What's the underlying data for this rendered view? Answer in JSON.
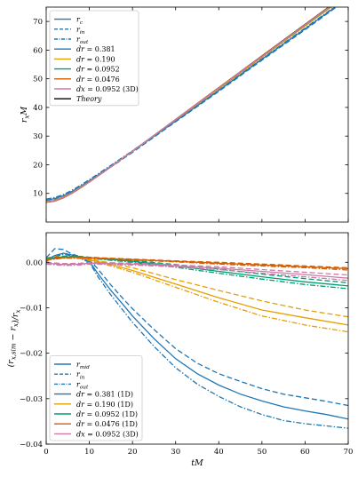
{
  "chart_data": [
    {
      "type": "line",
      "title": "",
      "ylabel": "r_x M",
      "xlabel": "",
      "xlim": [
        0,
        70
      ],
      "ylim": [
        0,
        75
      ],
      "xticks": [
        0,
        10,
        20,
        30,
        40,
        50,
        60,
        70
      ],
      "yticks": [
        10,
        20,
        30,
        40,
        50,
        60,
        70
      ],
      "yticklabels": [
        "10",
        "20",
        "30",
        "40",
        "50",
        "60",
        "70"
      ],
      "grid": false,
      "legend_position": "top-left",
      "legend": [
        {
          "label": "r_c",
          "color": "#1f77b4",
          "dash": "solid"
        },
        {
          "label": "r_in",
          "color": "#1f77b4",
          "dash": "dashed"
        },
        {
          "label": "r_out",
          "color": "#1f77b4",
          "dash": "dashdot"
        },
        {
          "label": "dr = 0.381",
          "color": "#1f77b4",
          "dash": "solid"
        },
        {
          "label": "dr = 0.190",
          "color": "#e69f00",
          "dash": "solid"
        },
        {
          "label": "dr = 0.0952",
          "color": "#009e73",
          "dash": "solid"
        },
        {
          "label": "dr = 0.0476",
          "color": "#d55e00",
          "dash": "solid"
        },
        {
          "label": "dx = 0.0952 (3D)",
          "color": "#cc79a7",
          "dash": "solid"
        },
        {
          "label": "Theory",
          "color": "#000000",
          "dash": "solid"
        }
      ],
      "series": [
        {
          "name": "Theory",
          "color": "#000000",
          "dash": "solid",
          "x": [
            0,
            2,
            4,
            6,
            8,
            10,
            15,
            20,
            30,
            40,
            50,
            60,
            70
          ],
          "y": [
            6.9,
            7.3,
            8.5,
            10.1,
            12.0,
            14.0,
            19.3,
            24.7,
            35.8,
            46.9,
            58.0,
            69.0,
            80.0
          ]
        },
        {
          "name": "dr = 0.381 (r_c)",
          "color": "#1f77b4",
          "dash": "solid",
          "x": [
            0,
            2,
            4,
            6,
            8,
            10,
            15,
            20,
            30,
            40,
            50,
            60,
            70
          ],
          "y": [
            7.6,
            8.2,
            9.2,
            10.7,
            12.5,
            14.4,
            19.5,
            24.6,
            35.2,
            45.9,
            56.8,
            67.4,
            78.3
          ]
        },
        {
          "name": "dr = 0.381 (r_in)",
          "color": "#1f77b4",
          "dash": "dashed",
          "x": [
            0,
            2,
            4,
            6,
            8,
            10,
            15,
            20,
            30,
            40,
            50,
            60,
            70
          ],
          "y": [
            7.2,
            7.8,
            8.8,
            10.3,
            12.1,
            14.0,
            19.2,
            24.3,
            35.0,
            45.6,
            56.5,
            67.1,
            78.0
          ]
        },
        {
          "name": "dr = 0.381 (r_out)",
          "color": "#1f77b4",
          "dash": "dashdot",
          "x": [
            0,
            2,
            4,
            6,
            8,
            10,
            15,
            20,
            30,
            40,
            50,
            60,
            70
          ],
          "y": [
            8.0,
            8.6,
            9.6,
            11.1,
            12.9,
            14.8,
            19.8,
            24.9,
            35.4,
            46.1,
            57.0,
            67.7,
            78.5
          ]
        },
        {
          "name": "dr = 0.190",
          "color": "#e69f00",
          "dash": "solid",
          "x": [
            0,
            2,
            4,
            6,
            8,
            10,
            15,
            20,
            30,
            40,
            50,
            60,
            70
          ],
          "y": [
            7.2,
            7.6,
            8.8,
            10.3,
            12.2,
            14.1,
            19.4,
            24.7,
            35.6,
            46.5,
            57.5,
            68.4,
            79.3
          ]
        },
        {
          "name": "dr = 0.0952",
          "color": "#009e73",
          "dash": "solid",
          "x": [
            0,
            2,
            4,
            6,
            8,
            10,
            15,
            20,
            30,
            40,
            50,
            60,
            70
          ],
          "y": [
            7.0,
            7.4,
            8.6,
            10.2,
            12.1,
            14.0,
            19.3,
            24.7,
            35.7,
            46.8,
            57.8,
            68.7,
            79.7
          ]
        },
        {
          "name": "dr = 0.0476",
          "color": "#d55e00",
          "dash": "solid",
          "x": [
            0,
            2,
            4,
            6,
            8,
            10,
            15,
            20,
            30,
            40,
            50,
            60,
            70
          ],
          "y": [
            6.9,
            7.3,
            8.5,
            10.1,
            12.0,
            14.0,
            19.3,
            24.7,
            35.8,
            46.9,
            57.9,
            68.9,
            79.9
          ]
        },
        {
          "name": "dx = 0.0952 (3D)",
          "color": "#cc79a7",
          "dash": "solid",
          "x": [
            0,
            2,
            4,
            6,
            8,
            10,
            15,
            20,
            30,
            40,
            50,
            60,
            70
          ],
          "y": [
            7.0,
            7.4,
            8.6,
            10.2,
            12.1,
            14.0,
            19.3,
            24.7,
            35.7,
            46.8,
            57.8,
            68.8,
            79.8
          ]
        }
      ]
    },
    {
      "type": "line",
      "title": "",
      "ylabel": "(r_x,sim − r_x)/r_x",
      "xlabel": "tM",
      "xlim": [
        0,
        70
      ],
      "ylim": [
        -0.04,
        0.0065
      ],
      "xticks": [
        0,
        10,
        20,
        30,
        40,
        50,
        60,
        70
      ],
      "xticklabels": [
        "0",
        "10",
        "20",
        "30",
        "40",
        "50",
        "60",
        "70"
      ],
      "yticks": [
        0.0,
        -0.01,
        -0.02,
        -0.03,
        -0.04
      ],
      "yticklabels": [
        "0.00",
        "−0.01",
        "−0.02",
        "−0.03",
        "−0.04"
      ],
      "grid": false,
      "legend_position": "bottom-left",
      "legend": [
        {
          "label": "r_mid",
          "color": "#1f77b4",
          "dash": "solid"
        },
        {
          "label": "r_in",
          "color": "#1f77b4",
          "dash": "dashed"
        },
        {
          "label": "r_out",
          "color": "#1f77b4",
          "dash": "dashdot"
        },
        {
          "label": "dr = 0.381 (1D)",
          "color": "#1f77b4",
          "dash": "solid"
        },
        {
          "label": "dr = 0.190 (1D)",
          "color": "#e69f00",
          "dash": "solid"
        },
        {
          "label": "dr = 0.0952 (1D)",
          "color": "#009e73",
          "dash": "solid"
        },
        {
          "label": "dr = 0.0476 (1D)",
          "color": "#d55e00",
          "dash": "solid"
        },
        {
          "label": "dx = 0.0952 (3D)",
          "color": "#cc79a7",
          "dash": "solid"
        }
      ],
      "series": [
        {
          "name": "dr = 0.381 (1D) r_mid",
          "color": "#1f77b4",
          "dash": "solid",
          "x": [
            0,
            2,
            4,
            6,
            8,
            10,
            12,
            15,
            18,
            20,
            25,
            30,
            35,
            40,
            45,
            50,
            55,
            60,
            65,
            70
          ],
          "y": [
            0.0005,
            0.0015,
            0.002,
            0.0016,
            0.001,
            0.0002,
            -0.0025,
            -0.0062,
            -0.0095,
            -0.0118,
            -0.0168,
            -0.0212,
            -0.0245,
            -0.027,
            -0.029,
            -0.0305,
            -0.0318,
            -0.0327,
            -0.0335,
            -0.0345
          ]
        },
        {
          "name": "dr = 0.381 (1D) r_in",
          "color": "#1f77b4",
          "dash": "dashed",
          "x": [
            0,
            2,
            4,
            6,
            8,
            10,
            12,
            15,
            18,
            20,
            25,
            30,
            35,
            40,
            45,
            50,
            55,
            60,
            65,
            70
          ],
          "y": [
            0.001,
            0.003,
            0.0028,
            0.0018,
            0.0012,
            0.0005,
            -0.0015,
            -0.005,
            -0.0082,
            -0.0102,
            -0.0148,
            -0.019,
            -0.0222,
            -0.0245,
            -0.0262,
            -0.0278,
            -0.029,
            -0.0298,
            -0.0306,
            -0.0315
          ]
        },
        {
          "name": "dr = 0.381 (1D) r_out",
          "color": "#1f77b4",
          "dash": "dashdot",
          "x": [
            0,
            2,
            4,
            6,
            8,
            10,
            12,
            15,
            18,
            20,
            25,
            30,
            35,
            40,
            45,
            50,
            55,
            60,
            65,
            70
          ],
          "y": [
            0.0002,
            0.0012,
            0.0018,
            0.0014,
            0.0008,
            0.0,
            -0.0032,
            -0.0072,
            -0.0108,
            -0.0132,
            -0.0185,
            -0.0232,
            -0.0268,
            -0.0295,
            -0.0318,
            -0.0335,
            -0.0348,
            -0.0355,
            -0.036,
            -0.0365
          ]
        },
        {
          "name": "dr = 0.190 (1D) r_mid",
          "color": "#e69f00",
          "dash": "solid",
          "x": [
            0,
            4,
            8,
            10,
            15,
            20,
            30,
            40,
            50,
            60,
            70
          ],
          "y": [
            0.0008,
            0.0012,
            0.001,
            0.0006,
            -0.0005,
            -0.0018,
            -0.0048,
            -0.0078,
            -0.0105,
            -0.0122,
            -0.0138
          ]
        },
        {
          "name": "dr = 0.190 (1D) r_in",
          "color": "#e69f00",
          "dash": "dashed",
          "x": [
            0,
            4,
            8,
            10,
            15,
            20,
            30,
            40,
            50,
            60,
            70
          ],
          "y": [
            0.001,
            0.0014,
            0.0012,
            0.0008,
            -0.0002,
            -0.0012,
            -0.0038,
            -0.0062,
            -0.0085,
            -0.0105,
            -0.012
          ]
        },
        {
          "name": "dr = 0.190 (1D) r_out",
          "color": "#e69f00",
          "dash": "dashdot",
          "x": [
            0,
            4,
            8,
            10,
            15,
            20,
            30,
            40,
            50,
            60,
            70
          ],
          "y": [
            0.0006,
            0.001,
            0.0008,
            0.0004,
            -0.0008,
            -0.0022,
            -0.0055,
            -0.0088,
            -0.0118,
            -0.0138,
            -0.0153
          ]
        },
        {
          "name": "dr = 0.0952 (1D) r_mid",
          "color": "#009e73",
          "dash": "solid",
          "x": [
            0,
            4,
            8,
            10,
            20,
            30,
            40,
            50,
            60,
            70
          ],
          "y": [
            0.0008,
            0.0012,
            0.0012,
            0.001,
            0.0002,
            -0.0008,
            -0.002,
            -0.0032,
            -0.0043,
            -0.0052
          ]
        },
        {
          "name": "dr = 0.0952 (1D) r_in",
          "color": "#009e73",
          "dash": "dashed",
          "x": [
            0,
            4,
            8,
            10,
            20,
            30,
            40,
            50,
            60,
            70
          ],
          "y": [
            0.0009,
            0.0013,
            0.0013,
            0.0011,
            0.0004,
            -0.0005,
            -0.0015,
            -0.0026,
            -0.0036,
            -0.0045
          ]
        },
        {
          "name": "dr = 0.0952 (1D) r_out",
          "color": "#009e73",
          "dash": "dashdot",
          "x": [
            0,
            4,
            8,
            10,
            20,
            30,
            40,
            50,
            60,
            70
          ],
          "y": [
            0.0007,
            0.0011,
            0.0011,
            0.0009,
            0.0,
            -0.0011,
            -0.0024,
            -0.0037,
            -0.0049,
            -0.0058
          ]
        },
        {
          "name": "dr = 0.0476 (1D) r_mid",
          "color": "#d55e00",
          "dash": "solid",
          "x": [
            0,
            4,
            8,
            10,
            20,
            30,
            40,
            50,
            60,
            70
          ],
          "y": [
            0.0006,
            0.001,
            0.0011,
            0.001,
            0.0006,
            0.0002,
            -0.0002,
            -0.0006,
            -0.001,
            -0.0014
          ]
        },
        {
          "name": "dr = 0.0476 (1D) r_in",
          "color": "#d55e00",
          "dash": "dashed",
          "x": [
            0,
            4,
            8,
            10,
            20,
            30,
            40,
            50,
            60,
            70
          ],
          "y": [
            0.0007,
            0.0011,
            0.0012,
            0.0011,
            0.0007,
            0.0003,
            0.0,
            -0.0004,
            -0.0008,
            -0.0012
          ]
        },
        {
          "name": "dr = 0.0476 (1D) r_out",
          "color": "#d55e00",
          "dash": "dashdot",
          "x": [
            0,
            4,
            8,
            10,
            20,
            30,
            40,
            50,
            60,
            70
          ],
          "y": [
            0.0005,
            0.0009,
            0.001,
            0.0009,
            0.0005,
            0.0001,
            -0.0004,
            -0.0008,
            -0.0012,
            -0.0017
          ]
        },
        {
          "name": "dx = 0.0952 (3D) r_mid",
          "color": "#cc79a7",
          "dash": "solid",
          "x": [
            0,
            4,
            8,
            10,
            20,
            30,
            40,
            50,
            60,
            70
          ],
          "y": [
            -0.0002,
            -0.0005,
            -0.0004,
            -0.0002,
            -0.0004,
            -0.0008,
            -0.0013,
            -0.002,
            -0.0027,
            -0.0035
          ]
        },
        {
          "name": "dx = 0.0952 (3D) r_in",
          "color": "#cc79a7",
          "dash": "dashed",
          "x": [
            0,
            4,
            8,
            10,
            20,
            30,
            40,
            50,
            60,
            70
          ],
          "y": [
            0.0,
            -0.0003,
            -0.0002,
            0.0,
            -0.0002,
            -0.0006,
            -0.001,
            -0.0016,
            -0.0022,
            -0.0028
          ]
        },
        {
          "name": "dx = 0.0952 (3D) r_out",
          "color": "#cc79a7",
          "dash": "dashdot",
          "x": [
            0,
            4,
            8,
            10,
            20,
            30,
            40,
            50,
            60,
            70
          ],
          "y": [
            -0.0004,
            -0.0007,
            -0.0006,
            -0.0004,
            -0.0006,
            -0.001,
            -0.0016,
            -0.0024,
            -0.0032,
            -0.004
          ]
        }
      ]
    }
  ]
}
